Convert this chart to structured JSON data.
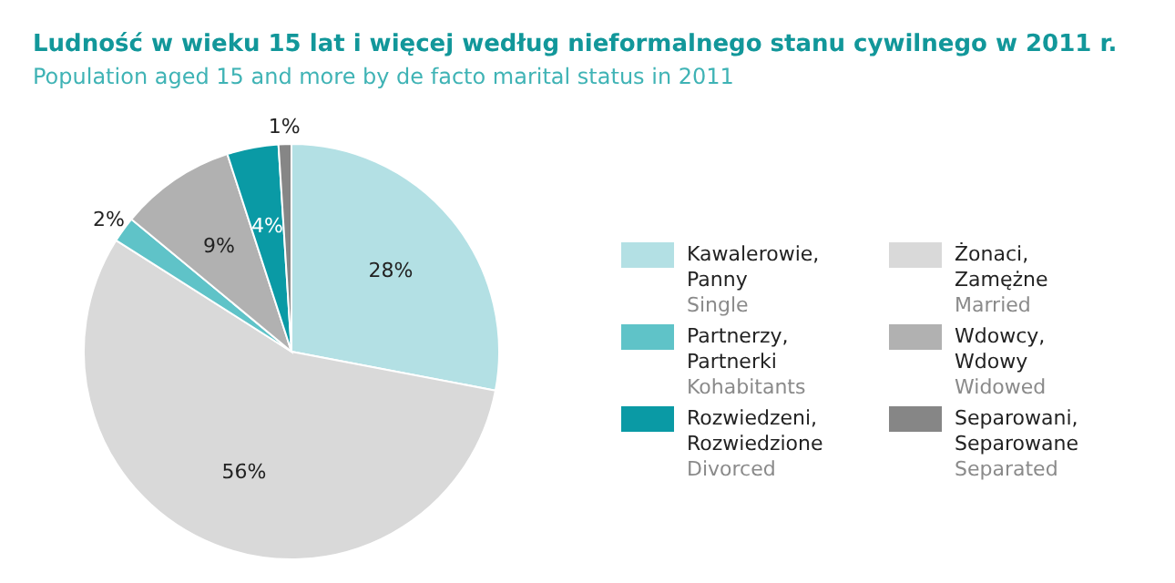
{
  "chart_data": {
    "type": "pie",
    "title": "Ludność w wieku 15 lat i więcej według nieformalnego stanu cywilnego w 2011 r.",
    "subtitle": "Population aged 15 and more by de facto marital status in 2011",
    "categories": [
      "Kawalerowie,\nPanny\nSingle",
      "Żonaci,\nZamężne\nMarried",
      "Partnerzy,\nPartnerki\nKohabitants",
      "Wdowcy,\nWdowy\nWidowed",
      "Rozwiedzeni,\nRozwiedzione\nDivorced",
      "Separowani,\nSeparowane\nSeparated"
    ],
    "values": [
      28,
      56,
      2,
      9,
      4,
      1
    ],
    "value_labels": [
      "28%",
      "56%",
      "2%",
      "9%",
      "4%",
      "1%"
    ],
    "colors": [
      "#b3e0e4",
      "#d9d9d9",
      "#5fc3c8",
      "#b1b1b1",
      "#0a9aa5",
      "#868686"
    ],
    "legend": "right"
  }
}
